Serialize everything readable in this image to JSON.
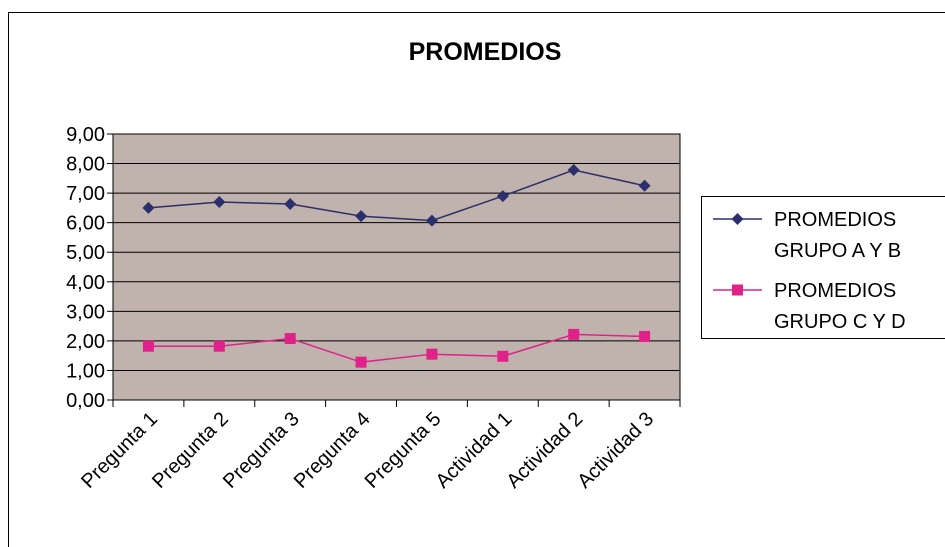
{
  "chart_data": {
    "type": "line",
    "title": "PROMEDIOS",
    "xlabel": "",
    "ylabel": "",
    "categories": [
      "Pregunta 1",
      "Pregunta 2",
      "Pregunta 3",
      "Pregunta 4",
      "Pregunta 5",
      "Actividad 1",
      "Actividad 2",
      "Actividad 3"
    ],
    "ylim": [
      0,
      9
    ],
    "yticks": [
      "0,00",
      "1,00",
      "2,00",
      "3,00",
      "4,00",
      "5,00",
      "6,00",
      "7,00",
      "8,00",
      "9,00"
    ],
    "grid": true,
    "legend_position": "right",
    "plot_background": "#c0b3ad",
    "series": [
      {
        "name_lines": [
          "PROMEDIOS",
          "GRUPO A Y B"
        ],
        "values": [
          6.5,
          6.7,
          6.63,
          6.22,
          6.07,
          6.9,
          7.78,
          7.25
        ],
        "color": "#2b2f6b",
        "marker": "diamond"
      },
      {
        "name_lines": [
          "PROMEDIOS",
          "GRUPO C Y D"
        ],
        "values": [
          1.82,
          1.82,
          2.08,
          1.28,
          1.55,
          1.48,
          2.22,
          2.15
        ],
        "color": "#e0218a",
        "marker": "square"
      }
    ]
  }
}
